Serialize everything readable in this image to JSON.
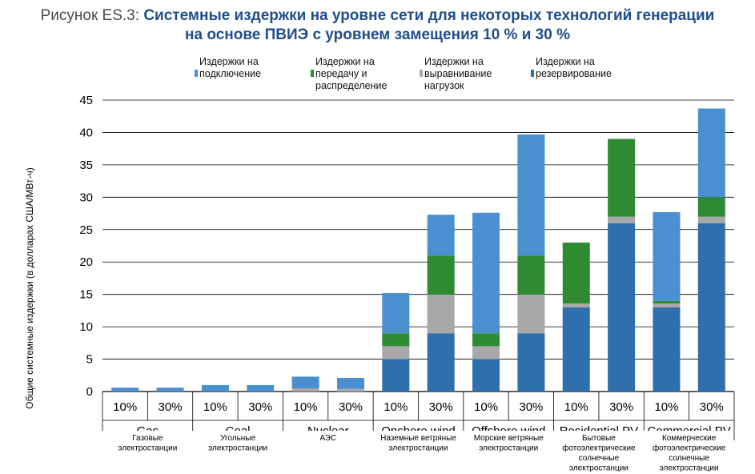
{
  "figure": {
    "label": "Рисунок ES.3:",
    "title_line1": "Системные издержки на уровне сети для некоторых технологий генерации",
    "title_line2": "на основе ПВИЭ с уровнем замещения 10 % и 30 %"
  },
  "chart_data": {
    "type": "bar",
    "stacked": true,
    "ylabel": "Общие системные издержки (в долларах США/МВт-ч)",
    "ylim": [
      0,
      45
    ],
    "yticks": [
      0,
      5,
      10,
      15,
      20,
      25,
      30,
      35,
      40,
      45
    ],
    "grid": true,
    "legend_position": "top",
    "categories": [
      "10%",
      "30%",
      "10%",
      "30%",
      "10%",
      "30%",
      "10%",
      "30%",
      "10%",
      "30%",
      "10%",
      "30%",
      "10%",
      "30%"
    ],
    "groups": [
      {
        "label": "Gas",
        "sublabel": "Газовые электростанции",
        "sublines": [
          "Газовые",
          "электростанции"
        ]
      },
      {
        "label": "Coal",
        "sublabel": "Угольные электростанции",
        "sublines": [
          "Угольные",
          "электростанции"
        ]
      },
      {
        "label": "Nuclear",
        "sublabel": "АЭС",
        "sublines": [
          "АЭС"
        ]
      },
      {
        "label": "Onshore wind",
        "sublabel": "Наземные ветряные электростанции",
        "sublines": [
          "Наземные ветряные",
          "электростанции"
        ]
      },
      {
        "label": "Offshore wind",
        "sublabel": "Морские ветряные электростанции",
        "sublines": [
          "Морские ветряные",
          "электростанции"
        ]
      },
      {
        "label": "Residential PV",
        "sublabel": "Бытовые фотоэлектрические солнечные электростанции",
        "sublines": [
          "Бытовые",
          "фотоэлектрические",
          "солнечные",
          "электростанции"
        ]
      },
      {
        "label": "Commercial PV",
        "sublabel": "Коммерческие фотоэлектрические солнечные электростанции",
        "sublines": [
          "Коммерческие",
          "фотоэлектрические",
          "солнечные",
          "электростанции"
        ]
      }
    ],
    "series": [
      {
        "name": "Издержки на резервирование",
        "legend_lines": [
          "Издержки на",
          "резервирование"
        ],
        "color": "#2e6fad",
        "values": [
          0,
          0,
          0,
          0,
          0,
          0,
          5,
          9,
          5,
          9,
          13,
          26,
          13,
          26
        ]
      },
      {
        "name": "Издержки на выравнивание нагрузок",
        "legend_lines": [
          "Издержки на",
          "выравнивание",
          "нагрузок"
        ],
        "color": "#a8a8a8",
        "values": [
          0,
          0,
          0,
          0,
          0.5,
          0.4,
          2,
          6,
          2,
          6,
          0.6,
          1,
          0.6,
          1
        ]
      },
      {
        "name": "Издержки на передачу и распределение",
        "legend_lines": [
          "Издержки на",
          "передачу и",
          "распределение"
        ],
        "color": "#2e8b32",
        "values": [
          0,
          0,
          0,
          0,
          0,
          0,
          2,
          6,
          2,
          6,
          9.4,
          12,
          0.4,
          3
        ]
      },
      {
        "name": "Издержки на подключение",
        "legend_lines": [
          "Издержки на",
          "подключение"
        ],
        "color": "#4a90d0",
        "values": [
          0.6,
          0.6,
          1,
          1,
          1.8,
          1.7,
          6.2,
          6.3,
          18.6,
          18.7,
          0,
          0,
          13.7,
          13.7
        ]
      }
    ]
  }
}
